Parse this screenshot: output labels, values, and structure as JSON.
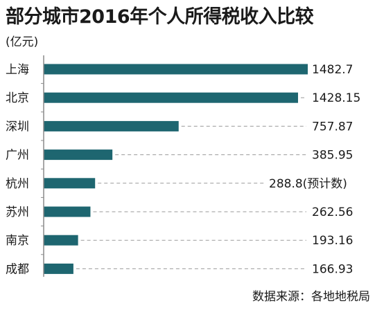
{
  "header": {
    "title": "部分城市2016年个人所得税收入比较",
    "unit": "(亿元)"
  },
  "footer": {
    "source": "数据来源：各地地税局"
  },
  "colors": {
    "bar": "#1e6670",
    "axis": "#8a8a8a",
    "dash": "#9a9a9a"
  },
  "chart_data": {
    "type": "bar",
    "orientation": "horizontal",
    "title": "部分城市2016年个人所得税收入比较",
    "ylabel": "(亿元)",
    "grid": false,
    "categories": [
      "上海",
      "北京",
      "深圳",
      "广州",
      "杭州",
      "苏州",
      "南京",
      "成都"
    ],
    "values": [
      1482.7,
      1428.15,
      757.87,
      385.95,
      288.8,
      262.56,
      193.16,
      166.93
    ],
    "value_labels": [
      "1482.7",
      "1428.15",
      "757.87",
      "385.95",
      "288.8(预计数)",
      "262.56",
      "193.16",
      "166.93"
    ],
    "xlim": [
      0,
      1482.7
    ]
  }
}
